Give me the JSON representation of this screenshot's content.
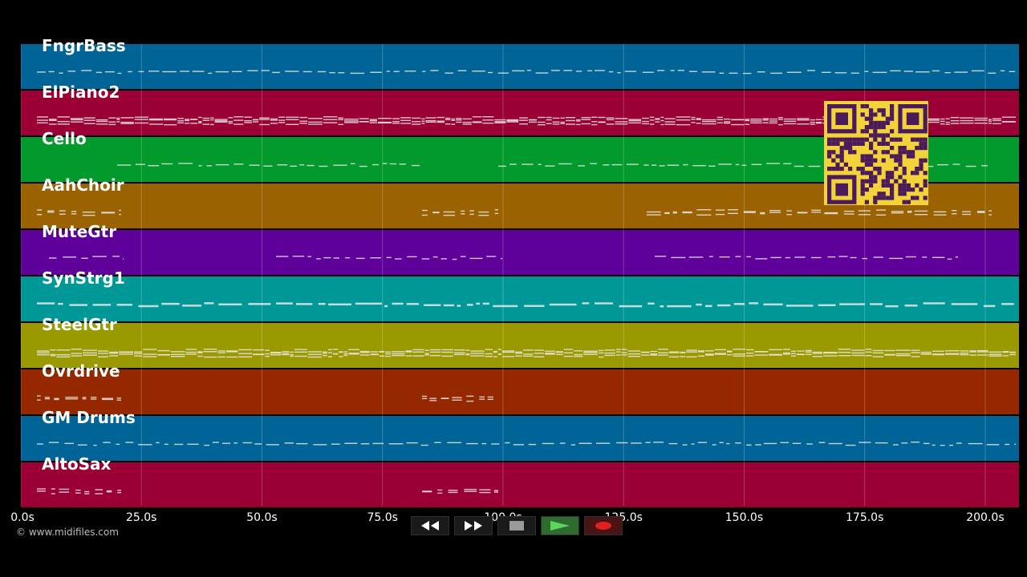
{
  "tracks": [
    {
      "name": "FngrBass",
      "color": "#006497",
      "density": 0.9,
      "pattern": "line"
    },
    {
      "name": "ElPiano2",
      "color": "#9a0035",
      "density": 1.0,
      "pattern": "dense"
    },
    {
      "name": "Cello",
      "color": "#029a2c",
      "density": 0.5,
      "pattern": "line"
    },
    {
      "name": "AahChoir",
      "color": "#9a6200",
      "density": 0.4,
      "pattern": "block"
    },
    {
      "name": "MuteGtr",
      "color": "#5f009a",
      "density": 0.6,
      "pattern": "sparse"
    },
    {
      "name": "SynStrg1",
      "color": "#009797",
      "density": 1.0,
      "pattern": "thick"
    },
    {
      "name": "SteelGtr",
      "color": "#9a9a00",
      "density": 1.0,
      "pattern": "dense"
    },
    {
      "name": "Ovrdrive",
      "color": "#962800",
      "density": 0.1,
      "pattern": "block"
    },
    {
      "name": "GM Drums",
      "color": "#006497",
      "density": 0.9,
      "pattern": "line"
    },
    {
      "name": "AltoSax",
      "color": "#9a0035",
      "density": 0.1,
      "pattern": "block"
    }
  ],
  "timeline": {
    "ticks": [
      "0.0s",
      "25.0s",
      "50.0s",
      "75.0s",
      "100.0s",
      "125.0s",
      "150.0s",
      "175.0s",
      "200.0s"
    ],
    "tick_values": [
      0,
      25,
      50,
      75,
      100,
      125,
      150,
      175,
      200
    ],
    "max_seconds": 207
  },
  "copyright": "© www.midifiles.com",
  "transport": {
    "rewind_icon": "rewind-icon",
    "fastforward_icon": "fast-forward-icon",
    "stop_icon": "stop-icon",
    "play_icon": "play-icon",
    "record_icon": "record-icon"
  },
  "qr_code": {
    "visible": true,
    "color_fg": "#4a1a5a",
    "color_bg": "#f2d33a"
  }
}
